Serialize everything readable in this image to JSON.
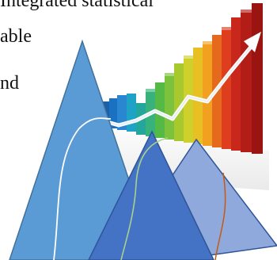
{
  "text_lines": [
    "Integrated statistical",
    "able",
    "nd"
  ],
  "colors": {
    "triangle_left": "#5b9bd5",
    "triangle_left_stroke": "#41719c",
    "triangle_middle": "#4472c4",
    "triangle_right": "#8fa9dc",
    "triangle_right_stroke": "#2f5597",
    "curve_white": "#ffffff",
    "curve_green": "#a9d18e",
    "curve_orange": "#c55a11",
    "chart_arrow": "#ffffff"
  },
  "illustration": {
    "description_icon": "growth-bar-chart-with-arrow-and-mountain-triangles"
  }
}
